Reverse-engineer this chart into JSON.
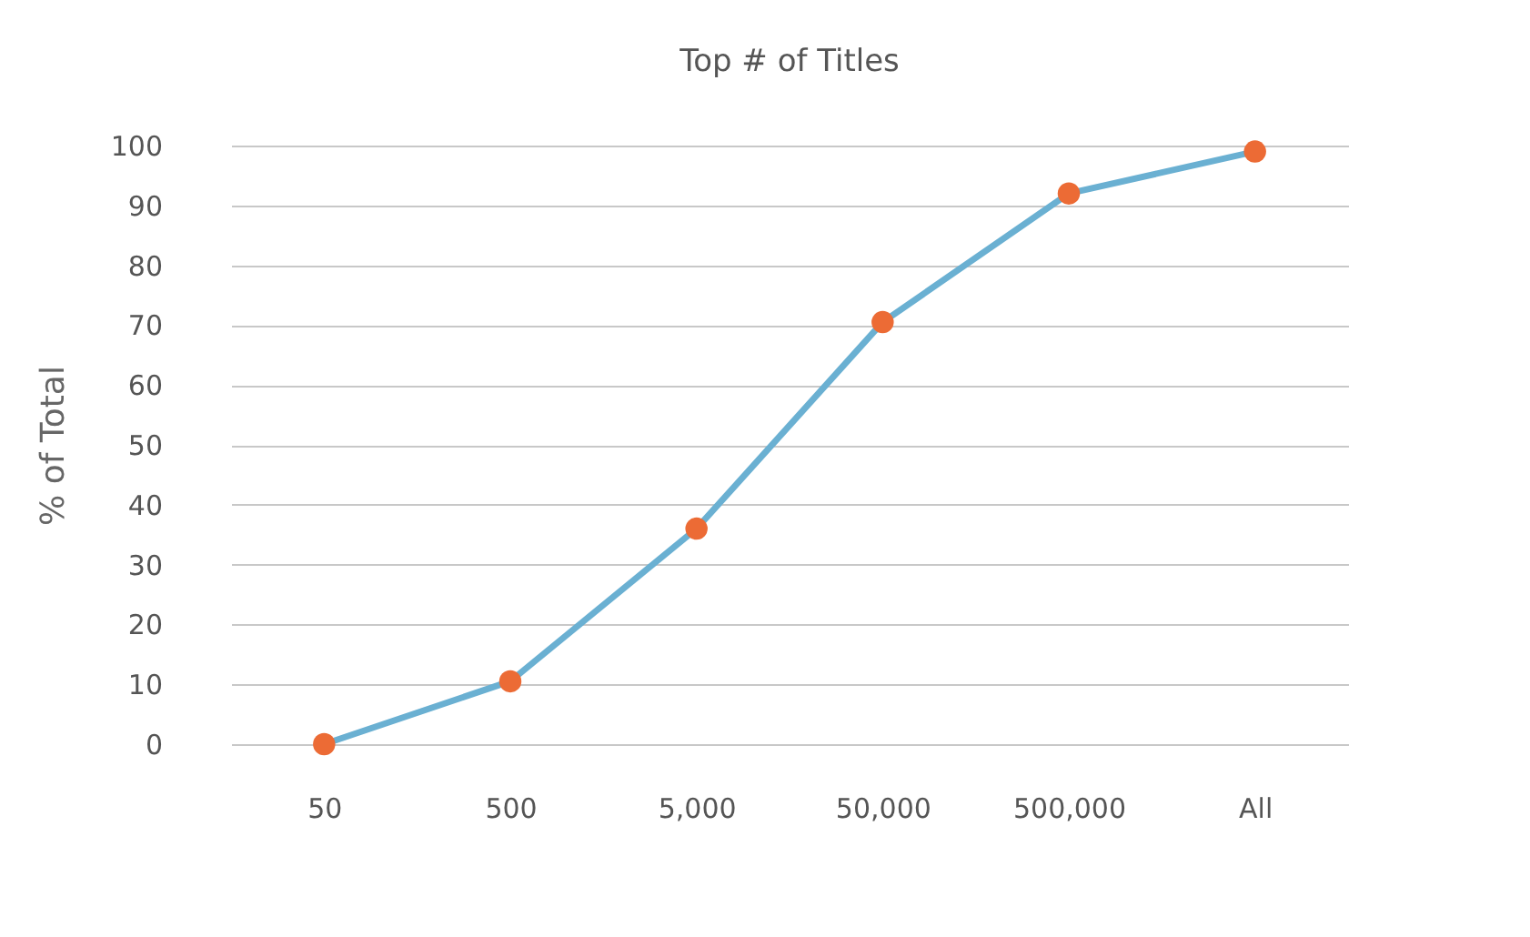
{
  "chart_data": {
    "type": "line",
    "title": "Top # of Titles",
    "ylabel": "% of Total",
    "categories": [
      "50",
      "500",
      "5,000",
      "50,000",
      "500,000",
      "All"
    ],
    "series": [
      {
        "color": "#6ab0d2",
        "marker": "none",
        "values": [
          0,
          10.5,
          36,
          70.5,
          92,
          99
        ]
      },
      {
        "type": "scatter",
        "color": "#ec6b35",
        "values": [
          0,
          10.5,
          36,
          70.5,
          92,
          99
        ]
      }
    ],
    "marker": "circle",
    "ylim": [
      0,
      100
    ],
    "yticks": [
      0,
      10,
      20,
      30,
      40,
      50,
      60,
      70,
      80,
      90,
      100
    ],
    "grid": "y"
  }
}
